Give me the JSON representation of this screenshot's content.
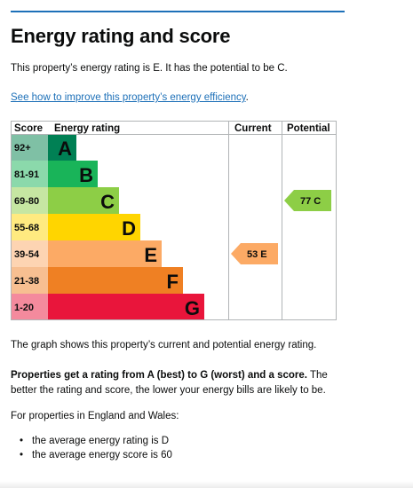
{
  "heading": "Energy rating and score",
  "intro": "This property’s energy rating is E. It has the potential to be C.",
  "improve_link": "See how to improve this property’s energy efficiency",
  "improve_link_suffix": ".",
  "chart_data": {
    "type": "table",
    "headers": {
      "score": "Score",
      "rating": "Energy rating",
      "current": "Current",
      "potential": "Potential"
    },
    "bands": [
      {
        "score": "92+",
        "letter": "A",
        "color": "#008054",
        "score_bg": "#7fc0a5"
      },
      {
        "score": "81-91",
        "letter": "B",
        "color": "#19b459",
        "score_bg": "#8bd9ab"
      },
      {
        "score": "69-80",
        "letter": "C",
        "color": "#8dce46",
        "score_bg": "#c6e6a2"
      },
      {
        "score": "55-68",
        "letter": "D",
        "color": "#ffd500",
        "score_bg": "#ffea80"
      },
      {
        "score": "39-54",
        "letter": "E",
        "color": "#fcaa65",
        "score_bg": "#fdd4b2"
      },
      {
        "score": "21-38",
        "letter": "F",
        "color": "#ef8023",
        "score_bg": "#f7bf91"
      },
      {
        "score": "1-20",
        "letter": "G",
        "color": "#e9153b",
        "score_bg": "#f48a9d"
      }
    ],
    "current": {
      "label": "53 E",
      "band": "E",
      "color": "#fcaa65"
    },
    "potential": {
      "label": "77 C",
      "band": "C",
      "color": "#8dce46"
    }
  },
  "graph_note": "The graph shows this property’s current and potential energy rating.",
  "ratings_bold": "Properties get a rating from A (best) to G (worst) and a score.",
  "ratings_text": " The better the rating and score, the lower your energy bills are likely to be.",
  "england_wales": "For properties in England and Wales:",
  "averages": [
    "the average energy rating is D",
    "the average energy score is 60"
  ]
}
